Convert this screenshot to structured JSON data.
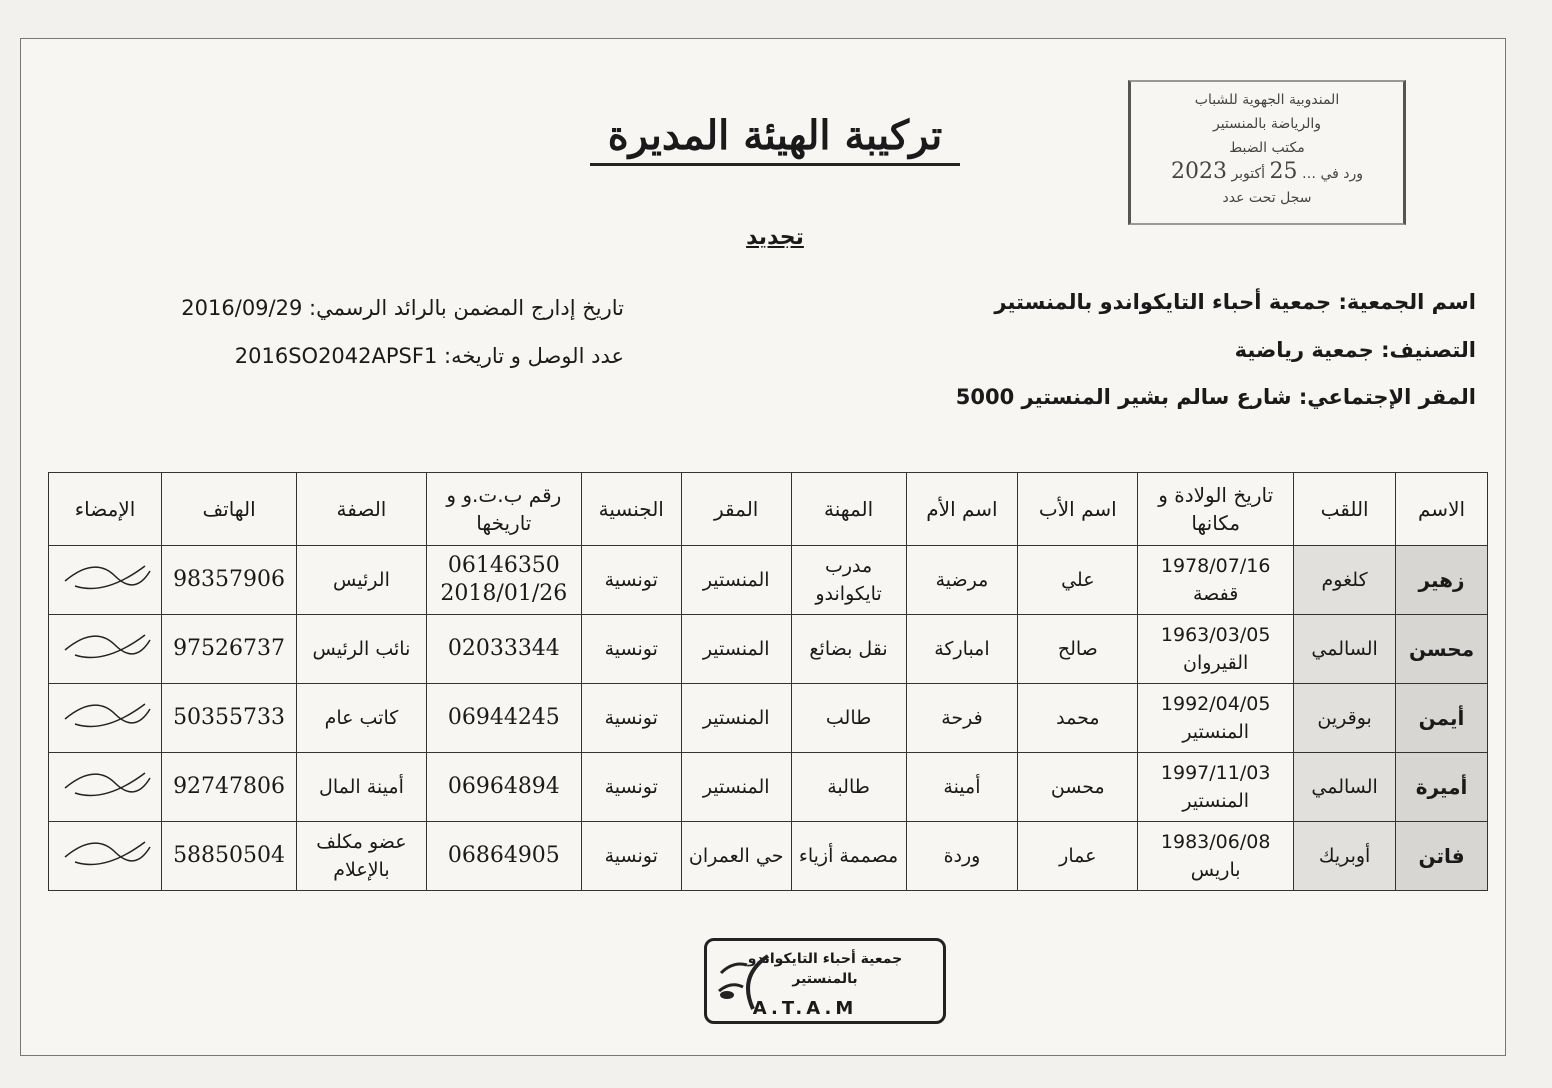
{
  "title": "تركيبة الهيئة المديرة",
  "subtitle": "تجديد",
  "stamp": {
    "line1": "المندوبية الجهوية للشباب",
    "line2": "والرياضة بالمنستير",
    "line3": "مكتب الضبط",
    "received": "ورد في",
    "day": "25",
    "month": "أكتوبر",
    "year": "2023",
    "registered": "سجل تحت عدد"
  },
  "association": {
    "name": "اسم الجمعية: جمعية أحباء التايكواندو بالمنستير",
    "classification": "التصنيف: جمعية رياضية",
    "seat": "المقر الإجتماعي: شارع سالم بشير المنستير 5000",
    "gazette_date": "تاريخ إدارج المضمن بالرائد الرسمي: 2016/09/29",
    "receipt": "عدد الوصل و تاريخه: 2016SO2042APSF1"
  },
  "table": {
    "headers": [
      "الاسم",
      "اللقب",
      "تاريخ الولادة و مكانها",
      "اسم الأب",
      "اسم الأم",
      "المهنة",
      "المقر",
      "الجنسية",
      "رقم ب.ت.و و تاريخها",
      "الصفة",
      "الهاتف",
      "الإمضاء"
    ],
    "rows": [
      [
        "زهير",
        "كلغوم",
        "1978/07/16 قفصة",
        "علي",
        "مرضية",
        "مدرب تايكواندو",
        "المنستير",
        "تونسية",
        "06146350 2018/01/26",
        "الرئيس",
        "98357906",
        ""
      ],
      [
        "محسن",
        "السالمي",
        "1963/03/05 القيروان",
        "صالح",
        "امباركة",
        "نقل بضائع",
        "المنستير",
        "تونسية",
        "02033344",
        "نائب الرئيس",
        "97526737",
        ""
      ],
      [
        "أيمن",
        "بوقرين",
        "1992/04/05 المنستير",
        "محمد",
        "فرحة",
        "طالب",
        "المنستير",
        "تونسية",
        "06944245",
        "كاتب عام",
        "50355733",
        ""
      ],
      [
        "أميرة",
        "السالمي",
        "1997/11/03 المنستير",
        "محسن",
        "أمينة",
        "طالبة",
        "المنستير",
        "تونسية",
        "06964894",
        "أمينة المال",
        "92747806",
        ""
      ],
      [
        "فاتن",
        "أوبريك",
        "1983/06/08 باريس",
        "عمار",
        "وردة",
        "مصممة أزياء",
        "حي العمران",
        "تونسية",
        "06864905",
        "عضو مكلف بالإعلام",
        "58850504",
        ""
      ]
    ]
  },
  "logo": {
    "line1": "جمعية أحباء التايكواندو",
    "line2": "بالمنستير",
    "abbr": "A.T.A.M"
  }
}
